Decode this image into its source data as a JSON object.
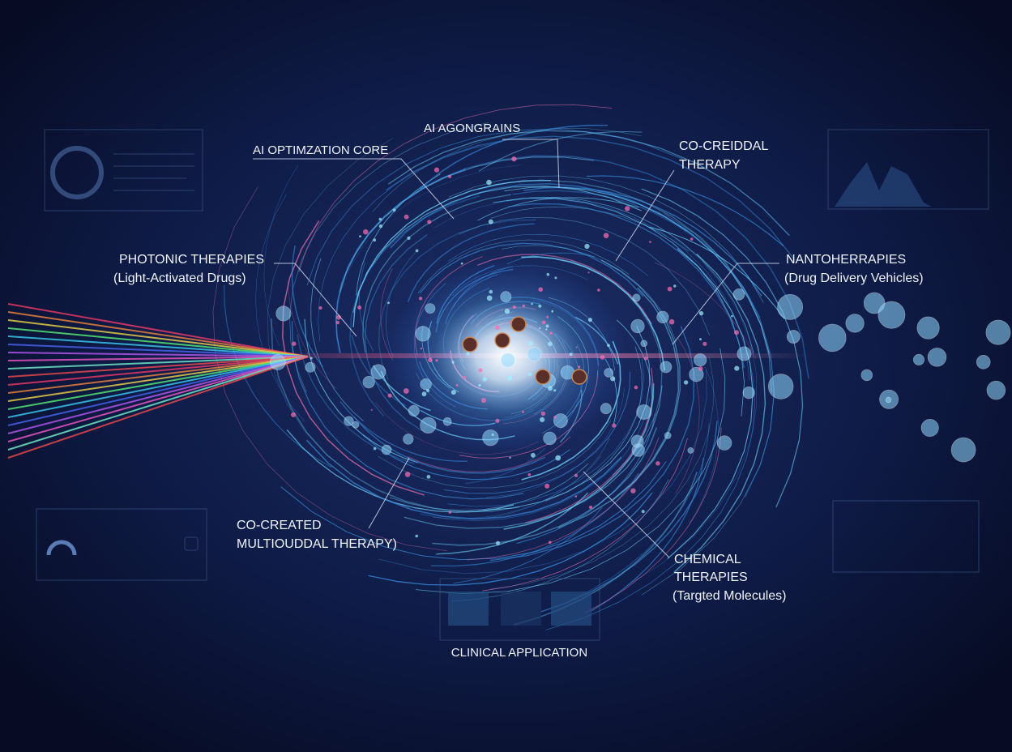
{
  "labels": [
    {
      "lines": [
        "AI AGONGRAINS"
      ]
    },
    {
      "lines": [
        "AI OPTIMZATION CORE"
      ]
    },
    {
      "lines": [
        "CO-CREIDDAL",
        "THERAPY"
      ]
    },
    {
      "lines": [
        "PHOTONIC THERAPIES",
        "(Light-Activated Drugs)"
      ]
    },
    {
      "lines": [
        "NANTOHERRAPIES",
        "(Drug Delivery Vehicles)"
      ]
    },
    {
      "lines": [
        "CO-CREATED",
        "MULTIOUDDAL THERAPY)"
      ]
    },
    {
      "lines": [
        "CHEMICAL",
        "THERAPIES",
        "(Targted Molecules)"
      ]
    }
  ],
  "panel": {
    "title": "CLINICAL APPLICATION"
  }
}
